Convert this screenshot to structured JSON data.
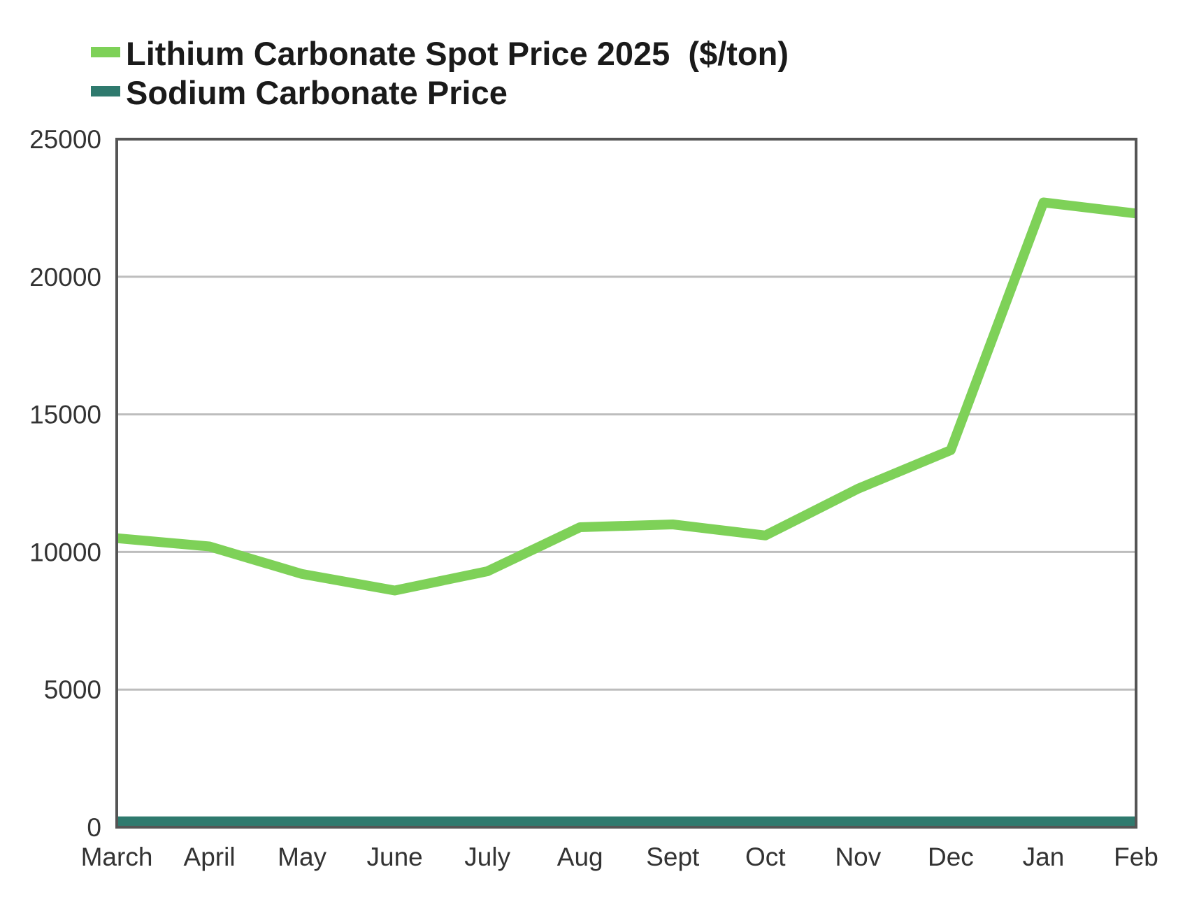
{
  "chart_data": {
    "type": "line",
    "title": "",
    "xlabel": "",
    "ylabel": "",
    "categories": [
      "March",
      "April",
      "May",
      "June",
      "July",
      "Aug",
      "Sept",
      "Oct",
      "Nov",
      "Dec",
      "Jan",
      "Feb"
    ],
    "series": [
      {
        "name": "Lithium Carbonate Spot Price 2025  ($/ton)",
        "color": "#7ed158",
        "values": [
          10500,
          10200,
          9200,
          8600,
          9300,
          10900,
          11000,
          10600,
          12300,
          13700,
          22700,
          22300
        ]
      },
      {
        "name": "Sodium Carbonate Price",
        "color": "#2f7a6e",
        "values": [
          200,
          200,
          200,
          200,
          200,
          200,
          200,
          200,
          200,
          200,
          200,
          200
        ]
      }
    ],
    "ylim": [
      0,
      25000
    ],
    "yticks": [
      0,
      5000,
      10000,
      15000,
      20000,
      25000
    ],
    "grid": true,
    "legend_position": "top-left"
  }
}
